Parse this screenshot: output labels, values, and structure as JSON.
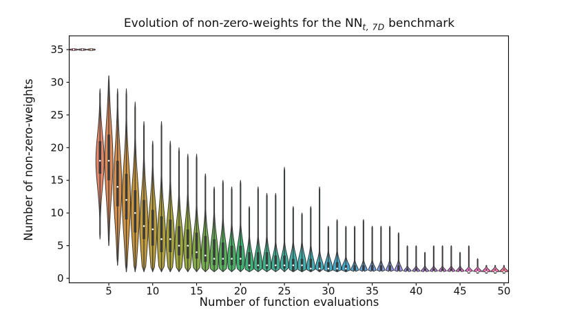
{
  "title": {
    "prefix": "Evolution of non-zero-weights for the NN",
    "sub": "t, 7D",
    "suffix": " benchmark"
  },
  "axes": {
    "xlabel": "Number of function evaluations",
    "ylabel": "Number of non-zero-weights"
  },
  "style": {
    "background": "#ffffff",
    "frame_color": "#000000",
    "tick_color": "#000000",
    "violin_edge_color": "#383838",
    "inner_box_color": "#3a3a3a",
    "median_dot_color": "#ffffff"
  },
  "chart_data": {
    "type": "violin",
    "title": "Evolution of non-zero-weights for the NN_{t, 7D} benchmark",
    "xlabel": "Number of function evaluations",
    "ylabel": "Number of non-zero-weights",
    "xticks": [
      5,
      10,
      15,
      20,
      25,
      30,
      35,
      40,
      45,
      50
    ],
    "yticks": [
      0,
      5,
      10,
      15,
      20,
      25,
      30,
      35
    ],
    "xlim": [
      0.5,
      50.5
    ],
    "ylim": [
      -0.7,
      36.7
    ],
    "grid": false,
    "legend": null,
    "violins": [
      {
        "x": 1,
        "min": 35,
        "q1": 35,
        "median": 35,
        "q3": 35,
        "max": 35,
        "color": "#f77189"
      },
      {
        "x": 2,
        "min": 35,
        "q1": 35,
        "median": 35,
        "q3": 35,
        "max": 35,
        "color": "#f0767b"
      },
      {
        "x": 3,
        "min": 35,
        "q1": 35,
        "median": 35,
        "q3": 35,
        "max": 35,
        "color": "#ea7b6d"
      },
      {
        "x": 4,
        "min": 6,
        "q1": 16,
        "median": 18,
        "q3": 21,
        "max": 29,
        "color": "#e3805f"
      },
      {
        "x": 5,
        "min": 5,
        "q1": 15,
        "median": 18,
        "q3": 22,
        "max": 31,
        "color": "#dd8551"
      },
      {
        "x": 6,
        "min": 2,
        "q1": 11,
        "median": 14,
        "q3": 18,
        "max": 29,
        "color": "#d68a43"
      },
      {
        "x": 7,
        "min": 1,
        "q1": 9,
        "median": 12,
        "q3": 16,
        "max": 29,
        "color": "#d08f35"
      },
      {
        "x": 8,
        "min": 1,
        "q1": 7,
        "median": 10,
        "q3": 13.5,
        "max": 27,
        "color": "#c79232"
      },
      {
        "x": 9,
        "min": 1,
        "q1": 6,
        "median": 8,
        "q3": 12,
        "max": 24,
        "color": "#bf9632"
      },
      {
        "x": 10,
        "min": 1,
        "q1": 5,
        "median": 7.5,
        "q3": 10.5,
        "max": 21,
        "color": "#b69932"
      },
      {
        "x": 11,
        "min": 1,
        "q1": 4,
        "median": 6,
        "q3": 9.5,
        "max": 24,
        "color": "#ad9c31"
      },
      {
        "x": 12,
        "min": 1,
        "q1": 4,
        "median": 6,
        "q3": 9,
        "max": 21,
        "color": "#a49f31"
      },
      {
        "x": 13,
        "min": 1,
        "q1": 3.5,
        "median": 5,
        "q3": 8,
        "max": 20,
        "color": "#9ba231"
      },
      {
        "x": 14,
        "min": 1,
        "q1": 3,
        "median": 5,
        "q3": 7.5,
        "max": 19,
        "color": "#8fa535"
      },
      {
        "x": 15,
        "min": 1,
        "q1": 3,
        "median": 4,
        "q3": 7,
        "max": 19,
        "color": "#7fa73d"
      },
      {
        "x": 16,
        "min": 1,
        "q1": 2.5,
        "median": 3.5,
        "q3": 6.5,
        "max": 16,
        "color": "#6fa946"
      },
      {
        "x": 17,
        "min": 1,
        "q1": 2,
        "median": 3,
        "q3": 6,
        "max": 14,
        "color": "#5eac4e"
      },
      {
        "x": 18,
        "min": 1,
        "q1": 2,
        "median": 3,
        "q3": 5.5,
        "max": 15,
        "color": "#4eae56"
      },
      {
        "x": 19,
        "min": 1,
        "q1": 2,
        "median": 3,
        "q3": 5,
        "max": 14,
        "color": "#3eb05f"
      },
      {
        "x": 20,
        "min": 1,
        "q1": 2,
        "median": 3,
        "q3": 5,
        "max": 15,
        "color": "#32b168"
      },
      {
        "x": 21,
        "min": 1,
        "q1": 1.5,
        "median": 2,
        "q3": 4,
        "max": 11,
        "color": "#33b072"
      },
      {
        "x": 22,
        "min": 1,
        "q1": 1.5,
        "median": 2,
        "q3": 4,
        "max": 14,
        "color": "#33b07c"
      },
      {
        "x": 23,
        "min": 1,
        "q1": 1.5,
        "median": 2,
        "q3": 4,
        "max": 13,
        "color": "#34af86"
      },
      {
        "x": 24,
        "min": 1,
        "q1": 1.5,
        "median": 2,
        "q3": 3.5,
        "max": 13,
        "color": "#35ae90"
      },
      {
        "x": 25,
        "min": 1,
        "q1": 1.5,
        "median": 2,
        "q3": 3.5,
        "max": 17,
        "color": "#35ae9a"
      },
      {
        "x": 26,
        "min": 1,
        "q1": 1,
        "median": 2,
        "q3": 3,
        "max": 11,
        "color": "#36ada4"
      },
      {
        "x": 27,
        "min": 1,
        "q1": 1,
        "median": 2,
        "q3": 3,
        "max": 10,
        "color": "#36acab"
      },
      {
        "x": 28,
        "min": 1,
        "q1": 1,
        "median": 1.5,
        "q3": 3,
        "max": 11,
        "color": "#37abb2"
      },
      {
        "x": 29,
        "min": 1,
        "q1": 1,
        "median": 1.5,
        "q3": 2.5,
        "max": 14,
        "color": "#37aab9"
      },
      {
        "x": 30,
        "min": 1,
        "q1": 1,
        "median": 1.5,
        "q3": 2.5,
        "max": 8,
        "color": "#38a9c0"
      },
      {
        "x": 31,
        "min": 1,
        "q1": 1,
        "median": 1.5,
        "q3": 2.5,
        "max": 9,
        "color": "#38a8c7"
      },
      {
        "x": 32,
        "min": 1,
        "q1": 1,
        "median": 1.5,
        "q3": 2,
        "max": 8,
        "color": "#39a7ce"
      },
      {
        "x": 33,
        "min": 1,
        "q1": 1,
        "median": 1,
        "q3": 2,
        "max": 8,
        "color": "#46a4d4"
      },
      {
        "x": 34,
        "min": 1,
        "q1": 1,
        "median": 1,
        "q3": 2,
        "max": 9,
        "color": "#579fda"
      },
      {
        "x": 35,
        "min": 1,
        "q1": 1,
        "median": 1,
        "q3": 2,
        "max": 8,
        "color": "#689be0"
      },
      {
        "x": 36,
        "min": 1,
        "q1": 1,
        "median": 1,
        "q3": 2,
        "max": 8,
        "color": "#7997e6"
      },
      {
        "x": 37,
        "min": 1,
        "q1": 1,
        "median": 1,
        "q3": 2,
        "max": 8,
        "color": "#8a93eb"
      },
      {
        "x": 38,
        "min": 1,
        "q1": 1,
        "median": 1,
        "q3": 2,
        "max": 7,
        "color": "#9b8ef1"
      },
      {
        "x": 39,
        "min": 1,
        "q1": 1,
        "median": 1,
        "q3": 1.5,
        "max": 5,
        "color": "#a689ef"
      },
      {
        "x": 40,
        "min": 1,
        "q1": 1,
        "median": 1,
        "q3": 1.5,
        "max": 5,
        "color": "#b185ec"
      },
      {
        "x": 41,
        "min": 1,
        "q1": 1,
        "median": 1,
        "q3": 1.5,
        "max": 4,
        "color": "#bc81e9"
      },
      {
        "x": 42,
        "min": 1,
        "q1": 1,
        "median": 1,
        "q3": 1.5,
        "max": 5,
        "color": "#c77ee6"
      },
      {
        "x": 43,
        "min": 1,
        "q1": 1,
        "median": 1,
        "q3": 1.5,
        "max": 5,
        "color": "#d278e2"
      },
      {
        "x": 44,
        "min": 1,
        "q1": 1,
        "median": 1,
        "q3": 1.5,
        "max": 5,
        "color": "#dd73de"
      },
      {
        "x": 45,
        "min": 1,
        "q1": 1,
        "median": 1,
        "q3": 1.5,
        "max": 4,
        "color": "#e86fda"
      },
      {
        "x": 46,
        "min": 1,
        "q1": 1,
        "median": 1,
        "q3": 1,
        "max": 5,
        "color": "#f56ccb"
      },
      {
        "x": 47,
        "min": 1,
        "q1": 1,
        "median": 1,
        "q3": 1,
        "max": 3,
        "color": "#f667bf"
      },
      {
        "x": 48,
        "min": 1,
        "q1": 1,
        "median": 1,
        "q3": 1,
        "max": 2,
        "color": "#f669b1"
      },
      {
        "x": 49,
        "min": 1,
        "q1": 1,
        "median": 1,
        "q3": 1,
        "max": 2,
        "color": "#f76ca4"
      },
      {
        "x": 50,
        "min": 1,
        "q1": 1,
        "median": 1,
        "q3": 1,
        "max": 2,
        "color": "#f76e96"
      }
    ]
  }
}
